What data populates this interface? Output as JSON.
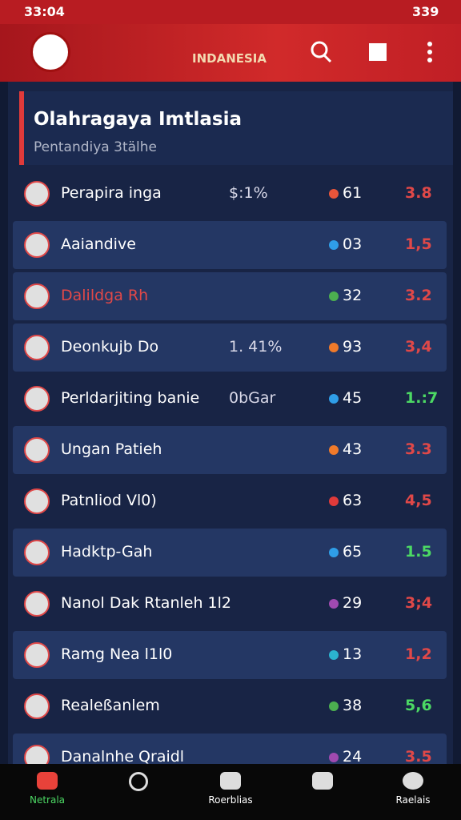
{
  "status_bar": {
    "time": "33:04",
    "battery": "339"
  },
  "app_bar": {
    "brand": "INDANESIA"
  },
  "header": {
    "title": "Olahragaya Imtlasia",
    "subtitle": "Pentandiya 3tälhe"
  },
  "rows": [
    {
      "name": "Perapira inga",
      "extra": "$:1%",
      "dot": "#e8553a",
      "count": "61",
      "score": "3.8",
      "score_color": "#e04848"
    },
    {
      "name": "Aaiandive",
      "dot": "#2f9ee8",
      "count": "03",
      "score": "1,5",
      "score_color": "#e04848"
    },
    {
      "name": "Dalildga Rh",
      "name_color": "#e04848",
      "dot": "#4caf50",
      "count": "32",
      "score": "3.2",
      "score_color": "#e04848"
    },
    {
      "name": "Deonkujb Do",
      "extra": "1. 41%",
      "dot": "#f07a2a",
      "count": "93",
      "score": "3,4",
      "score_color": "#e04848"
    },
    {
      "name": "Perldarjiting banie",
      "extra": "0bGar",
      "dot": "#2f9ee8",
      "count": "45",
      "score": "1.:7",
      "score_color": "#4cd964"
    },
    {
      "name": "Ungan Patieh",
      "dot": "#f07a2a",
      "count": "43",
      "score": "3.3",
      "score_color": "#e04848"
    },
    {
      "name": "Patnliod Vl0)",
      "dot": "#e03a3a",
      "count": "63",
      "score": "4,5",
      "score_color": "#e04848"
    },
    {
      "name": "Hadktp-Gah",
      "dot": "#2f9ee8",
      "count": "65",
      "score": "1.5",
      "score_color": "#4cd964"
    },
    {
      "name": "Nanol Dak Rtanleh 1l2",
      "dot": "#a04ab0",
      "count": "29",
      "score": "3;4",
      "score_color": "#e04848"
    },
    {
      "name": "Ramg Nea l1l0",
      "dot": "#2bb3d0",
      "count": "13",
      "score": "1,2",
      "score_color": "#e04848"
    },
    {
      "name": "Realeßanlem",
      "dot": "#4caf50",
      "count": "38",
      "score": "5,6",
      "score_color": "#4cd964"
    },
    {
      "name": "Danalnhe Qraidl",
      "dot": "#a04ab0",
      "count": "24",
      "score": "3.5",
      "score_color": "#e04848"
    }
  ],
  "bottom_nav": {
    "labels": [
      "Netrala",
      "Roerblias",
      "Raelais"
    ]
  }
}
